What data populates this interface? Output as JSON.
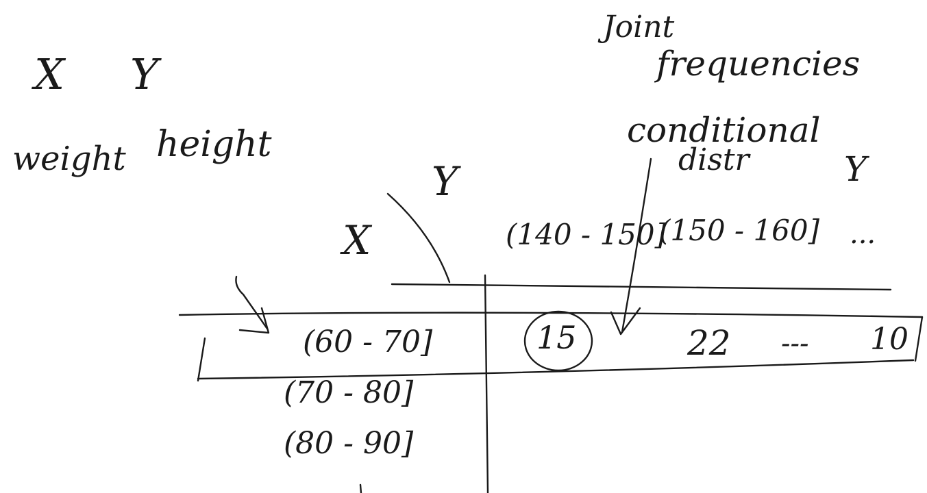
{
  "variables": {
    "x_symbol": "X",
    "y_symbol": "Y",
    "x_name": "weight",
    "y_name": "height"
  },
  "annotations": {
    "joint_line1": "Joint",
    "joint_line2": "frequencies",
    "conditional_line1": "conditional",
    "conditional_line2": "distr",
    "conditional_var": "Y"
  },
  "table": {
    "row_axis_label": "X",
    "column_axis_label": "Y",
    "column_headers": [
      "(140 - 150]",
      "(150 - 160]"
    ],
    "column_ellipsis": "...",
    "row_headers": [
      "(60 - 70]",
      "(70 - 80]",
      "(80 - 90]"
    ],
    "first_row_cells": [
      "15",
      "22"
    ],
    "first_row_ellipsis": "---",
    "first_row_last_cell": "10"
  },
  "colors": {
    "ink": "#1a1a1a",
    "paper": "#ffffff"
  }
}
